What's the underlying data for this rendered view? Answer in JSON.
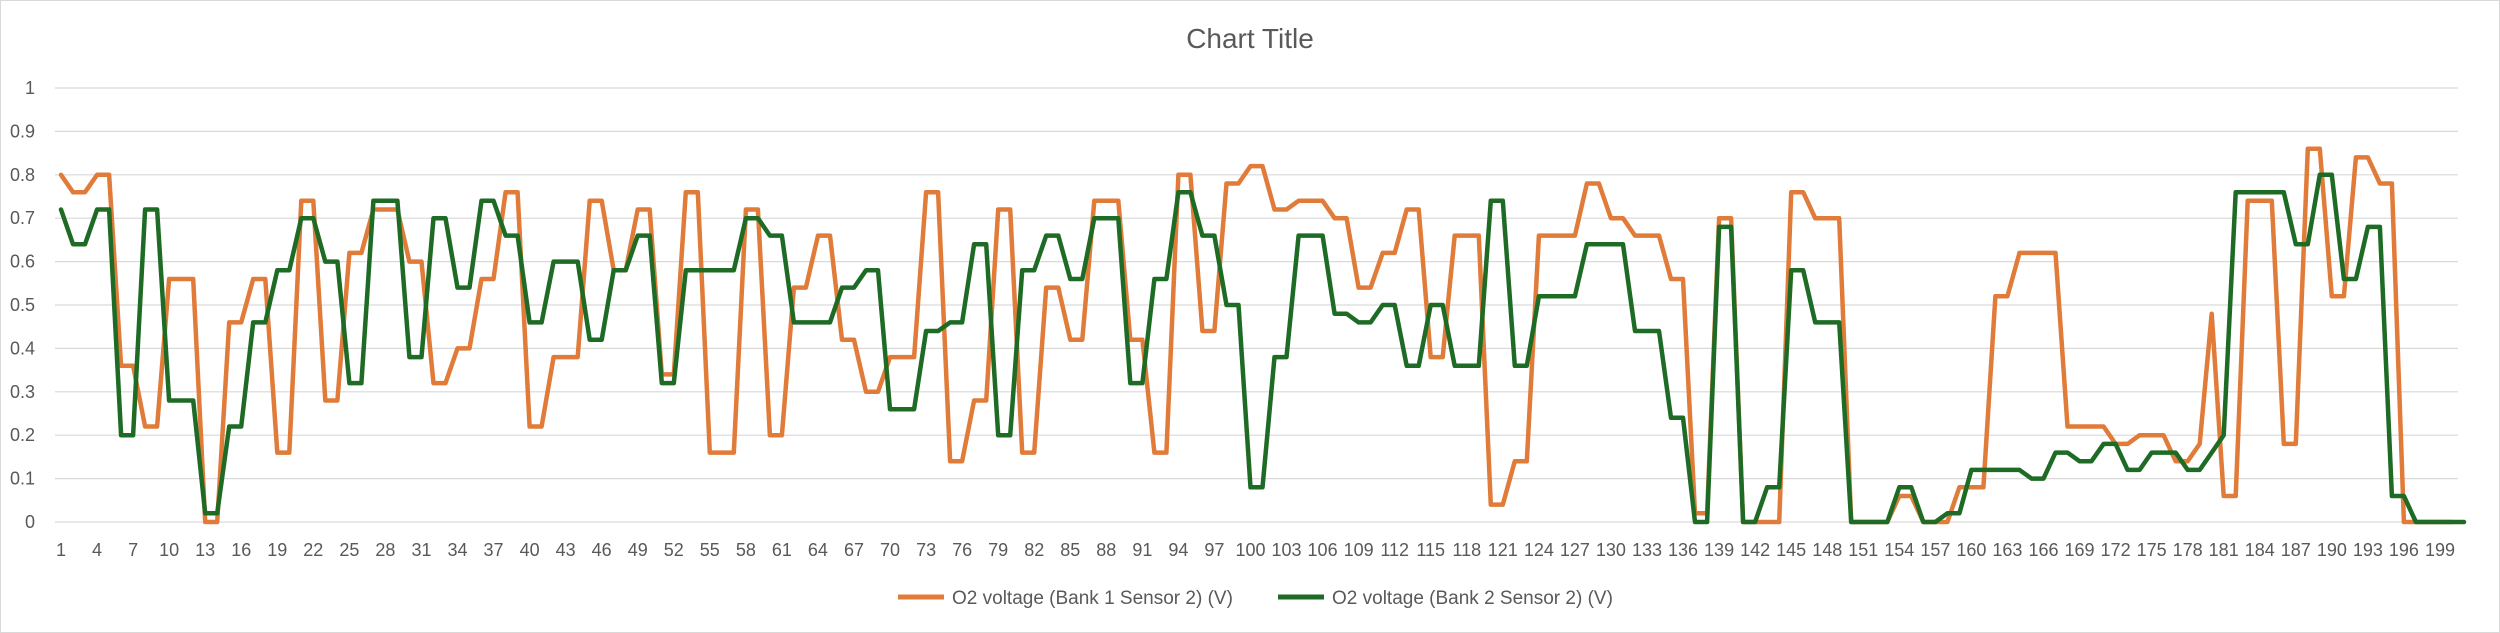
{
  "chart_data": {
    "type": "line",
    "title": "Chart Title",
    "xlabel": "",
    "ylabel": "",
    "ylim": [
      0,
      1
    ],
    "yticks": [
      0,
      0.1,
      0.2,
      0.3,
      0.4,
      0.5,
      0.6,
      0.7,
      0.8,
      0.9,
      1
    ],
    "ytick_labels": [
      "0",
      "0.1",
      "0.2",
      "0.3",
      "0.4",
      "0.5",
      "0.6",
      "0.7",
      "0.8",
      "0.9",
      "1"
    ],
    "x_count": 200,
    "xtick_step": 3,
    "grid": true,
    "legend_position": "bottom",
    "series": [
      {
        "name": "O2 voltage (Bank 1  Sensor 2) (V)",
        "color": "#E07B39",
        "values": [
          0.8,
          0.76,
          0.76,
          0.8,
          0.8,
          0.36,
          0.36,
          0.22,
          0.22,
          0.56,
          0.56,
          0.56,
          0.0,
          0.0,
          0.46,
          0.46,
          0.56,
          0.56,
          0.16,
          0.16,
          0.74,
          0.74,
          0.28,
          0.28,
          0.62,
          0.62,
          0.72,
          0.72,
          0.72,
          0.6,
          0.6,
          0.32,
          0.32,
          0.4,
          0.4,
          0.56,
          0.56,
          0.76,
          0.76,
          0.22,
          0.22,
          0.38,
          0.38,
          0.38,
          0.74,
          0.74,
          0.58,
          0.58,
          0.72,
          0.72,
          0.34,
          0.34,
          0.76,
          0.76,
          0.16,
          0.16,
          0.16,
          0.72,
          0.72,
          0.2,
          0.2,
          0.54,
          0.54,
          0.66,
          0.66,
          0.42,
          0.42,
          0.3,
          0.3,
          0.38,
          0.38,
          0.38,
          0.76,
          0.76,
          0.14,
          0.14,
          0.28,
          0.28,
          0.72,
          0.72,
          0.16,
          0.16,
          0.54,
          0.54,
          0.42,
          0.42,
          0.74,
          0.74,
          0.74,
          0.42,
          0.42,
          0.16,
          0.16,
          0.8,
          0.8,
          0.44,
          0.44,
          0.78,
          0.78,
          0.82,
          0.82,
          0.72,
          0.72,
          0.74,
          0.74,
          0.74,
          0.7,
          0.7,
          0.54,
          0.54,
          0.62,
          0.62,
          0.72,
          0.72,
          0.38,
          0.38,
          0.66,
          0.66,
          0.66,
          0.04,
          0.04,
          0.14,
          0.14,
          0.66,
          0.66,
          0.66,
          0.66,
          0.78,
          0.78,
          0.7,
          0.7,
          0.66,
          0.66,
          0.66,
          0.56,
          0.56,
          0.02,
          0.02,
          0.7,
          0.7,
          0.0,
          0.0,
          0.0,
          0.0,
          0.76,
          0.76,
          0.7,
          0.7,
          0.7,
          0.0,
          0.0,
          0.0,
          0.0,
          0.06,
          0.06,
          0.0,
          0.0,
          0.0,
          0.08,
          0.08,
          0.08,
          0.52,
          0.52,
          0.62,
          0.62,
          0.62,
          0.62,
          0.22,
          0.22,
          0.22,
          0.22,
          0.18,
          0.18,
          0.2,
          0.2,
          0.2,
          0.14,
          0.14,
          0.18,
          0.48,
          0.06,
          0.06,
          0.74,
          0.74,
          0.74,
          0.18,
          0.18,
          0.86,
          0.86,
          0.52,
          0.52,
          0.84,
          0.84,
          0.78,
          0.78,
          0.0,
          0.0,
          0.0,
          0.0,
          0.0
        ]
      },
      {
        "name": "O2 voltage (Bank 2  Sensor 2) (V)",
        "color": "#1E6B25",
        "values": [
          0.72,
          0.64,
          0.64,
          0.72,
          0.72,
          0.2,
          0.2,
          0.72,
          0.72,
          0.28,
          0.28,
          0.28,
          0.02,
          0.02,
          0.22,
          0.22,
          0.46,
          0.46,
          0.58,
          0.58,
          0.7,
          0.7,
          0.6,
          0.6,
          0.32,
          0.32,
          0.74,
          0.74,
          0.74,
          0.38,
          0.38,
          0.7,
          0.7,
          0.54,
          0.54,
          0.74,
          0.74,
          0.66,
          0.66,
          0.46,
          0.46,
          0.6,
          0.6,
          0.6,
          0.42,
          0.42,
          0.58,
          0.58,
          0.66,
          0.66,
          0.32,
          0.32,
          0.58,
          0.58,
          0.58,
          0.58,
          0.58,
          0.7,
          0.7,
          0.66,
          0.66,
          0.46,
          0.46,
          0.46,
          0.46,
          0.54,
          0.54,
          0.58,
          0.58,
          0.26,
          0.26,
          0.26,
          0.44,
          0.44,
          0.46,
          0.46,
          0.64,
          0.64,
          0.2,
          0.2,
          0.58,
          0.58,
          0.66,
          0.66,
          0.56,
          0.56,
          0.7,
          0.7,
          0.7,
          0.32,
          0.32,
          0.56,
          0.56,
          0.76,
          0.76,
          0.66,
          0.66,
          0.5,
          0.5,
          0.08,
          0.08,
          0.38,
          0.38,
          0.66,
          0.66,
          0.66,
          0.48,
          0.48,
          0.46,
          0.46,
          0.5,
          0.5,
          0.36,
          0.36,
          0.5,
          0.5,
          0.36,
          0.36,
          0.36,
          0.74,
          0.74,
          0.36,
          0.36,
          0.52,
          0.52,
          0.52,
          0.52,
          0.64,
          0.64,
          0.64,
          0.64,
          0.44,
          0.44,
          0.44,
          0.24,
          0.24,
          0.0,
          0.0,
          0.68,
          0.68,
          0.0,
          0.0,
          0.08,
          0.08,
          0.58,
          0.58,
          0.46,
          0.46,
          0.46,
          0.0,
          0.0,
          0.0,
          0.0,
          0.08,
          0.08,
          0.0,
          0.0,
          0.02,
          0.02,
          0.12,
          0.12,
          0.12,
          0.12,
          0.12,
          0.1,
          0.1,
          0.16,
          0.16,
          0.14,
          0.14,
          0.18,
          0.18,
          0.12,
          0.12,
          0.16,
          0.16,
          0.16,
          0.12,
          0.12,
          0.16,
          0.2,
          0.76,
          0.76,
          0.76,
          0.76,
          0.76,
          0.64,
          0.64,
          0.8,
          0.8,
          0.56,
          0.56,
          0.68,
          0.68,
          0.06,
          0.06,
          0.0,
          0.0,
          0.0,
          0.0,
          0.0
        ]
      }
    ]
  }
}
